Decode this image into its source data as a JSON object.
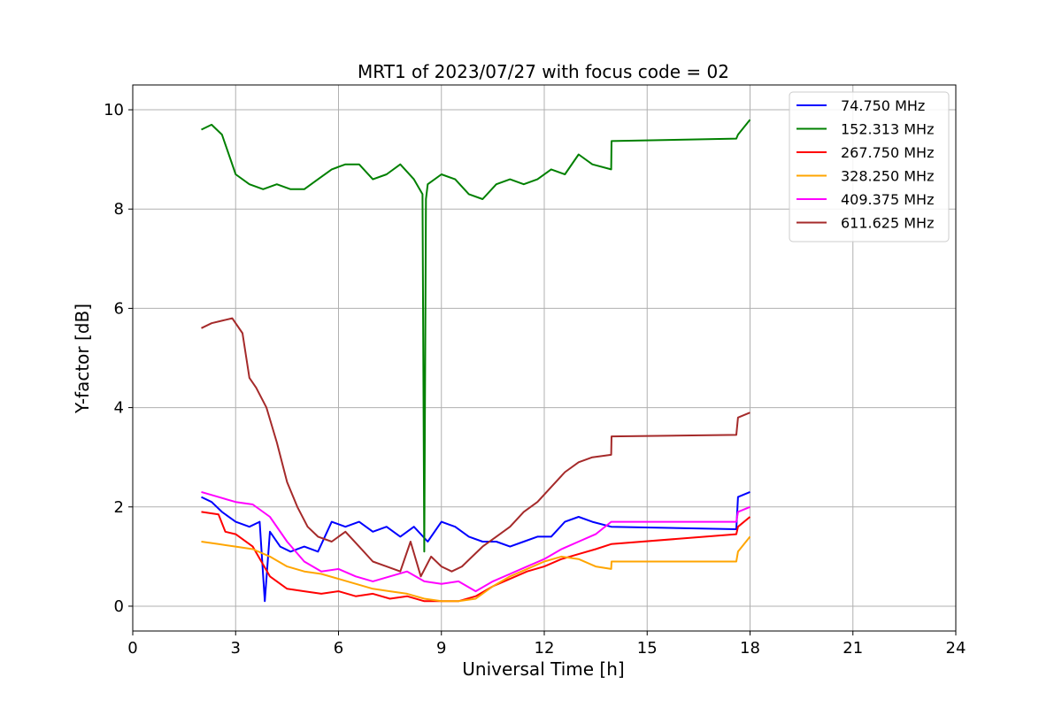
{
  "chart_data": {
    "type": "line",
    "title": "MRT1 of 2023/07/27 with focus code = 02",
    "xlabel": "Universal Time [h]",
    "ylabel": "Y-factor [dB]",
    "xlim": [
      0,
      24
    ],
    "ylim": [
      -0.5,
      10.5
    ],
    "xticks": [
      0,
      3,
      6,
      9,
      12,
      15,
      18,
      21,
      24
    ],
    "yticks": [
      0,
      2,
      4,
      6,
      8,
      10
    ],
    "grid": true,
    "legend_position": "top-right",
    "series": [
      {
        "name": "74.750 MHz",
        "color": "#0000ff",
        "x": [
          2.0,
          2.3,
          2.6,
          3.0,
          3.4,
          3.7,
          3.85,
          4.0,
          4.3,
          4.6,
          5.0,
          5.4,
          5.8,
          6.2,
          6.6,
          7.0,
          7.4,
          7.8,
          8.2,
          8.6,
          9.0,
          9.4,
          9.8,
          10.2,
          10.6,
          11.0,
          11.4,
          11.8,
          12.2,
          12.6,
          13.0,
          13.4,
          13.95,
          17.6,
          17.65,
          18.0
        ],
        "y": [
          2.2,
          2.1,
          1.9,
          1.7,
          1.6,
          1.7,
          0.1,
          1.5,
          1.2,
          1.1,
          1.2,
          1.1,
          1.7,
          1.6,
          1.7,
          1.5,
          1.6,
          1.4,
          1.6,
          1.3,
          1.7,
          1.6,
          1.4,
          1.3,
          1.3,
          1.2,
          1.3,
          1.4,
          1.4,
          1.7,
          1.8,
          1.7,
          1.6,
          1.55,
          2.2,
          2.3
        ]
      },
      {
        "name": "152.313 MHz",
        "color": "#008000",
        "x": [
          2.0,
          2.3,
          2.6,
          3.0,
          3.4,
          3.8,
          4.2,
          4.6,
          5.0,
          5.4,
          5.8,
          6.2,
          6.6,
          7.0,
          7.4,
          7.8,
          8.2,
          8.45,
          8.5,
          8.55,
          8.6,
          9.0,
          9.4,
          9.8,
          10.2,
          10.6,
          11.0,
          11.4,
          11.8,
          12.2,
          12.6,
          13.0,
          13.4,
          13.95,
          13.96,
          17.6,
          17.65,
          18.0
        ],
        "y": [
          9.6,
          9.7,
          9.5,
          8.7,
          8.5,
          8.4,
          8.5,
          8.4,
          8.4,
          8.6,
          8.8,
          8.9,
          8.9,
          8.6,
          8.7,
          8.9,
          8.6,
          8.3,
          1.1,
          8.2,
          8.5,
          8.7,
          8.6,
          8.3,
          8.2,
          8.5,
          8.6,
          8.5,
          8.6,
          8.8,
          8.7,
          9.1,
          8.9,
          8.8,
          9.37,
          9.42,
          9.5,
          9.8
        ]
      },
      {
        "name": "267.750 MHz",
        "color": "#ff0000",
        "x": [
          2.0,
          2.5,
          2.7,
          3.0,
          3.5,
          4.0,
          4.5,
          5.0,
          5.5,
          6.0,
          6.5,
          7.0,
          7.5,
          8.0,
          8.5,
          9.0,
          9.5,
          10.0,
          10.5,
          11.0,
          11.5,
          12.0,
          12.5,
          13.0,
          13.5,
          13.95,
          17.6,
          17.65,
          18.0
        ],
        "y": [
          1.9,
          1.85,
          1.5,
          1.45,
          1.2,
          0.6,
          0.35,
          0.3,
          0.25,
          0.3,
          0.2,
          0.25,
          0.15,
          0.2,
          0.1,
          0.1,
          0.1,
          0.2,
          0.4,
          0.55,
          0.7,
          0.8,
          0.95,
          1.05,
          1.15,
          1.25,
          1.45,
          1.6,
          1.8
        ]
      },
      {
        "name": "328.250 MHz",
        "color": "#ffa500",
        "x": [
          2.0,
          2.5,
          3.0,
          3.5,
          4.0,
          4.5,
          5.0,
          5.5,
          6.0,
          6.5,
          7.0,
          7.5,
          8.0,
          8.5,
          9.0,
          9.5,
          10.0,
          10.5,
          11.0,
          11.5,
          12.0,
          12.5,
          13.0,
          13.5,
          13.95,
          13.96,
          17.6,
          17.65,
          18.0
        ],
        "y": [
          1.3,
          1.25,
          1.2,
          1.15,
          1.0,
          0.8,
          0.7,
          0.65,
          0.55,
          0.45,
          0.35,
          0.3,
          0.25,
          0.15,
          0.1,
          0.1,
          0.15,
          0.4,
          0.6,
          0.75,
          0.9,
          1.0,
          0.95,
          0.8,
          0.75,
          0.9,
          0.9,
          1.1,
          1.4
        ]
      },
      {
        "name": "409.375 MHz",
        "color": "#ff00ff",
        "x": [
          2.0,
          2.5,
          3.0,
          3.5,
          4.0,
          4.5,
          5.0,
          5.5,
          6.0,
          6.5,
          7.0,
          7.5,
          8.0,
          8.5,
          9.0,
          9.5,
          10.0,
          10.5,
          11.0,
          11.5,
          12.0,
          12.5,
          13.0,
          13.5,
          13.95,
          17.6,
          17.65,
          18.0
        ],
        "y": [
          2.3,
          2.2,
          2.1,
          2.05,
          1.8,
          1.3,
          0.9,
          0.7,
          0.75,
          0.6,
          0.5,
          0.6,
          0.7,
          0.5,
          0.45,
          0.5,
          0.3,
          0.5,
          0.65,
          0.8,
          0.95,
          1.15,
          1.3,
          1.45,
          1.7,
          1.7,
          1.9,
          2.0
        ]
      },
      {
        "name": "611.625 MHz",
        "color": "#a52a2a",
        "x": [
          2.0,
          2.3,
          2.6,
          2.9,
          3.2,
          3.4,
          3.6,
          3.9,
          4.2,
          4.5,
          4.8,
          5.1,
          5.4,
          5.8,
          6.2,
          6.6,
          7.0,
          7.4,
          7.8,
          8.1,
          8.4,
          8.7,
          9.0,
          9.3,
          9.6,
          9.9,
          10.2,
          10.6,
          11.0,
          11.4,
          11.8,
          12.2,
          12.6,
          13.0,
          13.4,
          13.95,
          13.96,
          17.6,
          17.65,
          18.0
        ],
        "y": [
          5.6,
          5.7,
          5.75,
          5.8,
          5.5,
          4.6,
          4.4,
          4.0,
          3.3,
          2.5,
          2.0,
          1.6,
          1.4,
          1.3,
          1.5,
          1.2,
          0.9,
          0.8,
          0.7,
          1.3,
          0.6,
          1.0,
          0.8,
          0.7,
          0.8,
          1.0,
          1.2,
          1.4,
          1.6,
          1.9,
          2.1,
          2.4,
          2.7,
          2.9,
          3.0,
          3.05,
          3.42,
          3.45,
          3.8,
          3.9
        ]
      }
    ]
  }
}
